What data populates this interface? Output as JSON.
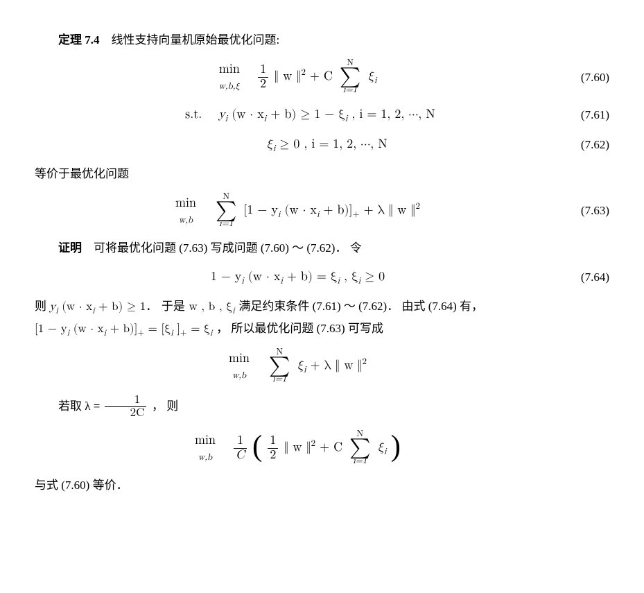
{
  "theorem": {
    "label": "定理 7.4",
    "title": "线性支持向量机原始最优化问题:"
  },
  "eq60": {
    "min_label": "min",
    "min_vars": "w,b,ξ",
    "body_pre": "",
    "frac_num": "1",
    "frac_den": "2",
    "norm": "‖ w ‖",
    "exp": "2",
    "plus": " + C",
    "sum_top": "N",
    "sum_bot": "i=1",
    "xi": "ξ",
    "xi_sub": "i",
    "num": "(7.60)"
  },
  "eq61": {
    "st": "s.t.",
    "body": "y",
    "body_sub_i": "i",
    "paren": "(w · x",
    "x_sub": "i",
    "plusb": " + b) ≥ 1 − ξ",
    "xi_sub": "i",
    "comma_range": " ,    i = 1, 2, ⋯, N",
    "num": "(7.61)"
  },
  "eq62": {
    "xi": "ξ",
    "xi_sub": "i",
    "ge": " ≥ 0 ,    i = 1, 2, ⋯, N",
    "num": "(7.62)"
  },
  "equiv_line": "等价于最优化问题",
  "eq63": {
    "min_label": "min",
    "min_vars": "w,b",
    "sum_top": "N",
    "sum_bot": "i=1",
    "bracket_open": "[1 − y",
    "y_sub": "i",
    "paren": "(w · x",
    "x_sub": "i",
    "plusb": " + b)]",
    "sub_plus": "+",
    "plus_lambda": " + λ ‖ w ‖",
    "exp": "2",
    "num": "(7.63)"
  },
  "proof_label": "证明",
  "proof_line1a": "可将最优化问题 (7.63) 写成问题 (7.60) ～ (7.62)．  令",
  "eq64": {
    "body": "1 − y",
    "y_sub": "i",
    "paren": "(w · x",
    "x_sub": "i",
    "plusb": " + b) = ξ",
    "xi_sub": "i",
    "comma": " ,    ξ",
    "xi_sub2": "i",
    "ge": " ≥ 0",
    "num": "(7.64)"
  },
  "para2_a": "则 ",
  "para2_b": "y",
  "para2_b_sub": "i",
  "para2_c": "(w · x",
  "para2_c_sub": "i",
  "para2_d": " + b) ≥ 1．  于是 w , b , ξ",
  "para2_d_sub": "i",
  "para2_e": " 满足约束条件 (7.61) ～ (7.62)．  由式 (7.64) 有，",
  "para3_a": "[1 − y",
  "para3_a_sub": "i",
  "para3_b": "(w · x",
  "para3_b_sub": "i",
  "para3_c": " + b)]",
  "para3_c_subp": "+",
  "para3_d": " = [ξ",
  "para3_d_sub": "i",
  "para3_e": "]",
  "para3_e_subp": "+",
  "para3_f": " = ξ",
  "para3_f_sub": "i",
  "para3_g": " ，  所以最优化问题 (7.63) 可写成",
  "eq65": {
    "min_label": "min",
    "min_vars": "w,b",
    "sum_top": "N",
    "sum_bot": "i=1",
    "xi": "ξ",
    "xi_sub": "i",
    "plus_lambda": " + λ ‖ w ‖",
    "exp": "2"
  },
  "para4_a": "若取 λ = ",
  "para4_frac_num": "1",
  "para4_frac_den": "2C",
  "para4_b": "，  则",
  "eq66": {
    "min_label": "min",
    "min_vars": "w,b",
    "frac1_num": "1",
    "frac1_den": "C",
    "frac2_num": "1",
    "frac2_den": "2",
    "norm": "‖ w ‖",
    "exp": "2",
    "plusC": " + C",
    "sum_top": "N",
    "sum_bot": "i=1",
    "xi": "ξ",
    "xi_sub": "i"
  },
  "last_line": "与式 (7.60) 等价．"
}
